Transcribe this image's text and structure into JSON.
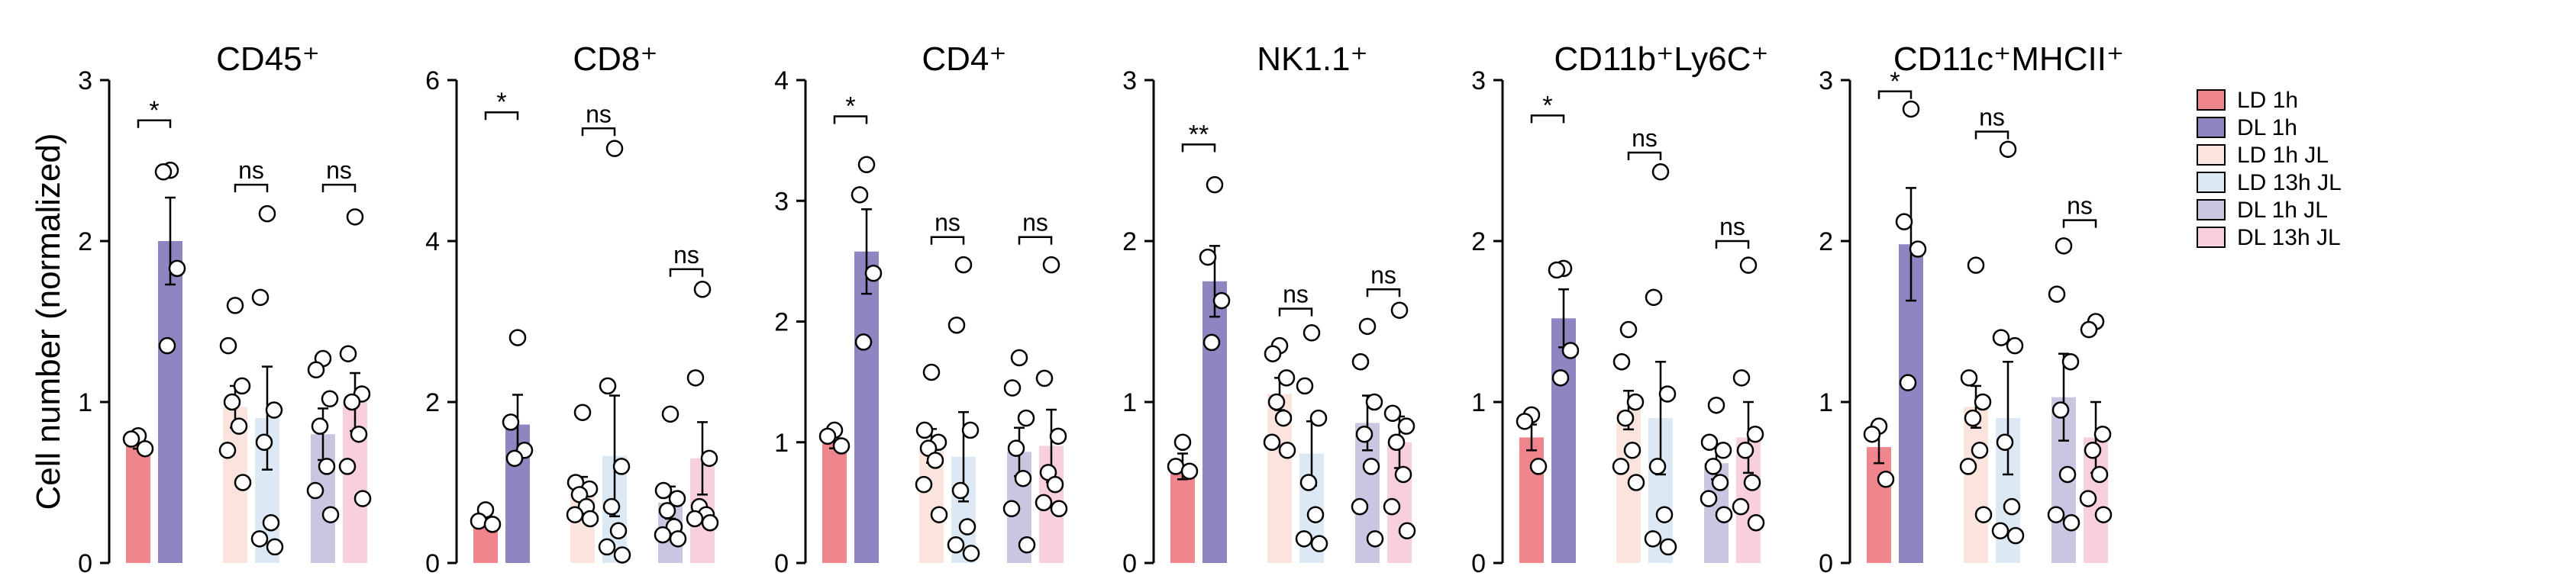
{
  "figure": {
    "ylabel": "Cell number (normalized)"
  },
  "legend": {
    "position": "right",
    "items": [
      {
        "label": "LD 1h",
        "color": "#f0868d"
      },
      {
        "label": "DL 1h",
        "color": "#8e86c0"
      },
      {
        "label": "LD 1h JL",
        "color": "#fbe3de"
      },
      {
        "label": "LD 13h JL",
        "color": "#dce9f4"
      },
      {
        "label": "DL 1h JL",
        "color": "#cac5e0"
      },
      {
        "label": "DL 13h JL",
        "color": "#f8cfdf"
      }
    ]
  },
  "chart_data": [
    {
      "type": "bar",
      "title": "CD45⁺",
      "ylim": [
        0,
        3
      ],
      "yticks": [
        0,
        1,
        2,
        3
      ],
      "series": [
        {
          "name": "LD 1h",
          "mean": 0.75,
          "sem": 0.04,
          "points": [
            0.79,
            0.77,
            0.71
          ]
        },
        {
          "name": "DL 1h",
          "mean": 2.0,
          "sem": 0.27,
          "points": [
            2.44,
            2.43,
            1.83,
            1.35
          ]
        },
        {
          "name": "LD 1h JL",
          "mean": 0.97,
          "sem": 0.13,
          "points": [
            1.6,
            1.35,
            1.1,
            1.0,
            0.85,
            0.7,
            0.5
          ]
        },
        {
          "name": "LD 13h JL",
          "mean": 0.9,
          "sem": 0.32,
          "points": [
            2.17,
            1.65,
            0.95,
            0.75,
            0.25,
            0.15,
            0.1
          ]
        },
        {
          "name": "DL 1h JL",
          "mean": 0.8,
          "sem": 0.16,
          "points": [
            1.27,
            1.2,
            1.02,
            0.85,
            0.6,
            0.45,
            0.3
          ]
        },
        {
          "name": "DL 13h JL",
          "mean": 1.0,
          "sem": 0.18,
          "points": [
            2.15,
            1.3,
            1.05,
            1.0,
            0.8,
            0.6,
            0.4
          ]
        }
      ],
      "annotations": [
        {
          "pair": [
            0,
            1
          ],
          "text": "*",
          "y": 2.75
        },
        {
          "pair": [
            2,
            3
          ],
          "text": "ns",
          "y": 2.35
        },
        {
          "pair": [
            4,
            5
          ],
          "text": "ns",
          "y": 2.35
        }
      ]
    },
    {
      "type": "bar",
      "title": "CD8⁺",
      "ylim": [
        0,
        6
      ],
      "yticks": [
        0,
        2,
        4,
        6
      ],
      "series": [
        {
          "name": "LD 1h",
          "mean": 0.55,
          "sem": 0.07,
          "points": [
            0.66,
            0.52,
            0.48
          ]
        },
        {
          "name": "DL 1h",
          "mean": 1.72,
          "sem": 0.37,
          "points": [
            2.8,
            1.75,
            1.4,
            1.3
          ]
        },
        {
          "name": "LD 1h JL",
          "mean": 0.95,
          "sem": 0.12,
          "points": [
            1.87,
            1.0,
            0.92,
            0.85,
            0.7,
            0.6,
            0.55
          ]
        },
        {
          "name": "LD 13h JL",
          "mean": 1.33,
          "sem": 0.75,
          "points": [
            5.15,
            2.2,
            1.2,
            0.7,
            0.4,
            0.2,
            0.1
          ]
        },
        {
          "name": "DL 1h JL",
          "mean": 0.75,
          "sem": 0.2,
          "points": [
            1.85,
            0.9,
            0.8,
            0.65,
            0.45,
            0.35,
            0.3
          ]
        },
        {
          "name": "DL 13h JL",
          "mean": 1.3,
          "sem": 0.45,
          "points": [
            3.4,
            2.3,
            1.3,
            0.7,
            0.6,
            0.55,
            0.5
          ]
        }
      ],
      "annotations": [
        {
          "pair": [
            0,
            1
          ],
          "text": "*",
          "y": 5.6
        },
        {
          "pair": [
            2,
            3
          ],
          "text": "ns",
          "y": 5.4
        },
        {
          "pair": [
            4,
            5
          ],
          "text": "ns",
          "y": 3.65
        }
      ]
    },
    {
      "type": "bar",
      "title": "CD4⁺",
      "ylim": [
        0,
        4
      ],
      "yticks": [
        0,
        1,
        2,
        3,
        4
      ],
      "series": [
        {
          "name": "LD 1h",
          "mean": 1.0,
          "sem": 0.05,
          "points": [
            1.1,
            1.05,
            0.97
          ]
        },
        {
          "name": "DL 1h",
          "mean": 2.58,
          "sem": 0.35,
          "points": [
            3.3,
            3.05,
            2.4,
            1.83
          ]
        },
        {
          "name": "LD 1h JL",
          "mean": 0.97,
          "sem": 0.14,
          "points": [
            1.58,
            1.1,
            1.0,
            0.95,
            0.85,
            0.65,
            0.4
          ]
        },
        {
          "name": "LD 13h JL",
          "mean": 0.88,
          "sem": 0.37,
          "points": [
            2.47,
            1.97,
            1.1,
            0.6,
            0.3,
            0.15,
            0.08
          ]
        },
        {
          "name": "DL 1h JL",
          "mean": 0.92,
          "sem": 0.2,
          "points": [
            1.7,
            1.45,
            1.2,
            0.95,
            0.7,
            0.45,
            0.15
          ]
        },
        {
          "name": "DL 13h JL",
          "mean": 0.97,
          "sem": 0.3,
          "points": [
            2.47,
            1.53,
            1.05,
            0.75,
            0.65,
            0.5,
            0.45
          ]
        }
      ],
      "annotations": [
        {
          "pair": [
            0,
            1
          ],
          "text": "*",
          "y": 3.7
        },
        {
          "pair": [
            2,
            3
          ],
          "text": "ns",
          "y": 2.7
        },
        {
          "pair": [
            4,
            5
          ],
          "text": "ns",
          "y": 2.7
        }
      ]
    },
    {
      "type": "bar",
      "title": "NK1.1⁺",
      "ylim": [
        0,
        3
      ],
      "yticks": [
        0,
        1,
        2,
        3
      ],
      "series": [
        {
          "name": "LD 1h",
          "mean": 0.6,
          "sem": 0.08,
          "points": [
            0.75,
            0.6,
            0.57
          ]
        },
        {
          "name": "DL 1h",
          "mean": 1.75,
          "sem": 0.22,
          "points": [
            2.35,
            1.9,
            1.63,
            1.37
          ]
        },
        {
          "name": "LD 1h JL",
          "mean": 1.05,
          "sem": 0.1,
          "points": [
            1.35,
            1.3,
            1.15,
            1.0,
            0.9,
            0.75,
            0.7
          ]
        },
        {
          "name": "LD 13h JL",
          "mean": 0.68,
          "sem": 0.2,
          "points": [
            1.43,
            1.1,
            0.9,
            0.5,
            0.3,
            0.15,
            0.12
          ]
        },
        {
          "name": "DL 1h JL",
          "mean": 0.87,
          "sem": 0.17,
          "points": [
            1.47,
            1.25,
            1.0,
            0.8,
            0.6,
            0.35,
            0.15
          ]
        },
        {
          "name": "DL 13h JL",
          "mean": 0.75,
          "sem": 0.16,
          "points": [
            1.57,
            0.93,
            0.85,
            0.75,
            0.55,
            0.35,
            0.2
          ]
        }
      ],
      "annotations": [
        {
          "pair": [
            0,
            1
          ],
          "text": "**",
          "y": 2.6
        },
        {
          "pair": [
            2,
            3
          ],
          "text": "ns",
          "y": 1.58
        },
        {
          "pair": [
            4,
            5
          ],
          "text": "ns",
          "y": 1.7
        }
      ]
    },
    {
      "type": "bar",
      "title": "CD11b⁺Ly6C⁺",
      "ylim": [
        0,
        3
      ],
      "yticks": [
        0,
        1,
        2,
        3
      ],
      "series": [
        {
          "name": "LD 1h",
          "mean": 0.78,
          "sem": 0.08,
          "points": [
            0.92,
            0.88,
            0.6
          ]
        },
        {
          "name": "DL 1h",
          "mean": 1.52,
          "sem": 0.18,
          "points": [
            1.83,
            1.82,
            1.32,
            1.15
          ]
        },
        {
          "name": "LD 1h JL",
          "mean": 0.95,
          "sem": 0.12,
          "points": [
            1.45,
            1.25,
            1.0,
            0.9,
            0.7,
            0.6,
            0.5
          ]
        },
        {
          "name": "LD 13h JL",
          "mean": 0.9,
          "sem": 0.35,
          "points": [
            2.43,
            1.65,
            1.05,
            0.6,
            0.3,
            0.15,
            0.1
          ]
        },
        {
          "name": "DL 1h JL",
          "mean": 0.62,
          "sem": 0.1,
          "points": [
            0.98,
            0.75,
            0.7,
            0.6,
            0.5,
            0.4,
            0.3
          ]
        },
        {
          "name": "DL 13h JL",
          "mean": 0.78,
          "sem": 0.22,
          "points": [
            1.85,
            1.15,
            0.8,
            0.7,
            0.5,
            0.35,
            0.25
          ]
        }
      ],
      "annotations": [
        {
          "pair": [
            0,
            1
          ],
          "text": "*",
          "y": 2.78
        },
        {
          "pair": [
            2,
            3
          ],
          "text": "ns",
          "y": 2.55
        },
        {
          "pair": [
            4,
            5
          ],
          "text": "ns",
          "y": 2.0
        }
      ]
    },
    {
      "type": "bar",
      "title": "CD11c⁺MHCII⁺",
      "ylim": [
        0,
        3
      ],
      "yticks": [
        0,
        1,
        2,
        3
      ],
      "series": [
        {
          "name": "LD 1h",
          "mean": 0.72,
          "sem": 0.1,
          "points": [
            0.85,
            0.8,
            0.52
          ]
        },
        {
          "name": "DL 1h",
          "mean": 1.98,
          "sem": 0.35,
          "points": [
            2.82,
            2.12,
            1.95,
            1.12
          ]
        },
        {
          "name": "LD 1h JL",
          "mean": 0.97,
          "sem": 0.13,
          "points": [
            1.85,
            1.15,
            1.0,
            0.9,
            0.7,
            0.6,
            0.3
          ]
        },
        {
          "name": "LD 13h JL",
          "mean": 0.9,
          "sem": 0.35,
          "points": [
            2.57,
            1.4,
            1.35,
            0.75,
            0.35,
            0.2,
            0.17
          ]
        },
        {
          "name": "DL 1h JL",
          "mean": 1.03,
          "sem": 0.27,
          "points": [
            1.97,
            1.67,
            1.25,
            0.95,
            0.55,
            0.3,
            0.25
          ]
        },
        {
          "name": "DL 13h JL",
          "mean": 0.78,
          "sem": 0.22,
          "points": [
            1.5,
            1.45,
            0.8,
            0.7,
            0.55,
            0.4,
            0.3
          ]
        }
      ],
      "annotations": [
        {
          "pair": [
            0,
            1
          ],
          "text": "*",
          "y": 2.93
        },
        {
          "pair": [
            2,
            3
          ],
          "text": "ns",
          "y": 2.68
        },
        {
          "pair": [
            4,
            5
          ],
          "text": "ns",
          "y": 2.13
        }
      ]
    }
  ]
}
